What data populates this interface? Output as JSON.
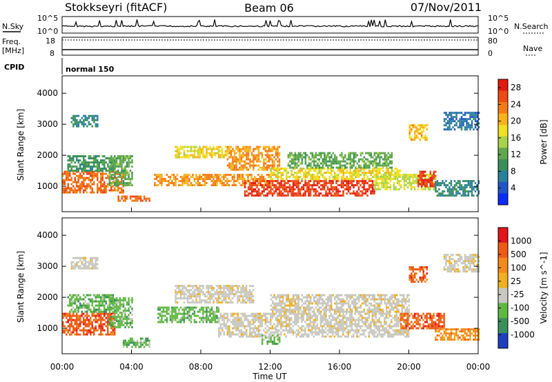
{
  "header": {
    "station": "Stokkseyri (fitACF)",
    "beam": "Beam 06",
    "date": "07/Nov/2011"
  },
  "status_panels": {
    "nsky_label": "N.Sky",
    "nsearch_label": "N.Search",
    "noise_ticks_left": [
      "10^5",
      "10^0"
    ],
    "noise_ticks_right": [
      "10^5",
      "10^0"
    ],
    "freq_label": "Freq.",
    "freq_unit": "[MHz]",
    "freq_ticks": [
      "18",
      "8"
    ],
    "nave_label": "Nave",
    "nave_ticks": [
      "80",
      "0"
    ],
    "cpid_label": "CPID",
    "cpid_value": "normal 150"
  },
  "chart_data": [
    {
      "type": "heatmap",
      "name": "Power",
      "xlabel": "",
      "ylabel": "Slant Range [km]",
      "x_ticks": [
        "00:00",
        "04:00",
        "08:00",
        "12:00",
        "16:00",
        "20:00",
        "00:00"
      ],
      "xlim_hours": [
        0,
        24
      ],
      "y_ticks": [
        1000,
        2000,
        3000,
        4000
      ],
      "ylim_km": [
        180,
        4560
      ],
      "colorbar": {
        "label": "Power [dB]",
        "ticks": [
          4,
          8,
          12,
          16,
          20,
          24,
          28
        ],
        "range": [
          0,
          30
        ],
        "colors": [
          "#0b2bff",
          "#1f55c8",
          "#2a7f9a",
          "#3a8f5a",
          "#5fa84a",
          "#a8d24a",
          "#f0e020",
          "#f8b21a",
          "#f47a12",
          "#ee4b12",
          "#e21a10"
        ]
      },
      "echo_regions": [
        {
          "t0": 0.0,
          "t1": 3.5,
          "r0": 800,
          "r1": 1500,
          "value": 24
        },
        {
          "t0": 0.3,
          "t1": 3.2,
          "r0": 1500,
          "r1": 2000,
          "value": 10
        },
        {
          "t0": 0.5,
          "t1": 2.0,
          "r0": 2900,
          "r1": 3300,
          "value": 8
        },
        {
          "t0": 2.7,
          "t1": 4.0,
          "r0": 1000,
          "r1": 2000,
          "value": 12
        },
        {
          "t0": 3.2,
          "t1": 5.0,
          "r0": 500,
          "r1": 700,
          "value": 24
        },
        {
          "t0": 5.3,
          "t1": 12.0,
          "r0": 1000,
          "r1": 1400,
          "value": 22
        },
        {
          "t0": 6.5,
          "t1": 9.5,
          "r0": 1900,
          "r1": 2300,
          "value": 18
        },
        {
          "t0": 9.5,
          "t1": 12.5,
          "r0": 1500,
          "r1": 2300,
          "value": 22
        },
        {
          "t0": 10.5,
          "t1": 18.0,
          "r0": 700,
          "r1": 1200,
          "value": 27
        },
        {
          "t0": 12.0,
          "t1": 19.5,
          "r0": 1200,
          "r1": 1600,
          "value": 18
        },
        {
          "t0": 13.0,
          "t1": 19.0,
          "r0": 1600,
          "r1": 2100,
          "value": 12
        },
        {
          "t0": 18.0,
          "t1": 21.5,
          "r0": 900,
          "r1": 1400,
          "value": 16
        },
        {
          "t0": 20.5,
          "t1": 21.5,
          "r0": 1000,
          "r1": 1500,
          "value": 27
        },
        {
          "t0": 20.0,
          "t1": 21.0,
          "r0": 2500,
          "r1": 3000,
          "value": 20
        },
        {
          "t0": 21.5,
          "t1": 24.0,
          "r0": 700,
          "r1": 1200,
          "value": 8
        },
        {
          "t0": 22.0,
          "t1": 24.0,
          "r0": 2800,
          "r1": 3400,
          "value": 6
        }
      ]
    },
    {
      "type": "heatmap",
      "name": "Velocity",
      "xlabel": "Time UT",
      "ylabel": "Slant Range [km]",
      "x_ticks": [
        "00:00",
        "04:00",
        "08:00",
        "12:00",
        "16:00",
        "20:00",
        "00:00"
      ],
      "xlim_hours": [
        0,
        24
      ],
      "y_ticks": [
        1000,
        2000,
        3000,
        4000
      ],
      "ylim_km": [
        180,
        4560
      ],
      "colorbar": {
        "label": "Velocity [m s^-1]",
        "ticks": [
          "1000",
          "500",
          "100",
          "25",
          "-25",
          "-100",
          "-500",
          "-1000"
        ],
        "colors": [
          "#1f3fbf",
          "#3a8f5a",
          "#5fb840",
          "#c8c8c0",
          "#f0b020",
          "#f48a18",
          "#ee5a14",
          "#e2151a"
        ]
      },
      "echo_regions": [
        {
          "t0": 0.0,
          "t1": 3.0,
          "r0": 800,
          "r1": 1500,
          "value": -500
        },
        {
          "t0": 0.3,
          "t1": 3.0,
          "r0": 1500,
          "r1": 2100,
          "value": 100
        },
        {
          "t0": 2.7,
          "t1": 4.0,
          "r0": 1000,
          "r1": 2000,
          "value": 100
        },
        {
          "t0": 3.5,
          "t1": 5.0,
          "r0": 400,
          "r1": 700,
          "value": 100
        },
        {
          "t0": 5.5,
          "t1": 9.0,
          "r0": 1200,
          "r1": 1700,
          "value": 100
        },
        {
          "t0": 6.5,
          "t1": 11.0,
          "r0": 1800,
          "r1": 2400,
          "value": 0
        },
        {
          "t0": 9.0,
          "t1": 20.0,
          "r0": 700,
          "r1": 1500,
          "value": 0
        },
        {
          "t0": 12.0,
          "t1": 20.0,
          "r0": 1500,
          "r1": 2100,
          "value": 0
        },
        {
          "t0": 11.5,
          "t1": 12.5,
          "r0": 500,
          "r1": 800,
          "value": 100
        },
        {
          "t0": 19.5,
          "t1": 22.0,
          "r0": 1000,
          "r1": 1500,
          "value": -500
        },
        {
          "t0": 20.0,
          "t1": 21.0,
          "r0": 2500,
          "r1": 3000,
          "value": -500
        },
        {
          "t0": 21.5,
          "t1": 24.0,
          "r0": 600,
          "r1": 1000,
          "value": -100
        },
        {
          "t0": 22.0,
          "t1": 24.0,
          "r0": 2800,
          "r1": 3400,
          "value": 0
        },
        {
          "t0": 0.5,
          "t1": 2.0,
          "r0": 2900,
          "r1": 3300,
          "value": 0
        }
      ]
    }
  ]
}
